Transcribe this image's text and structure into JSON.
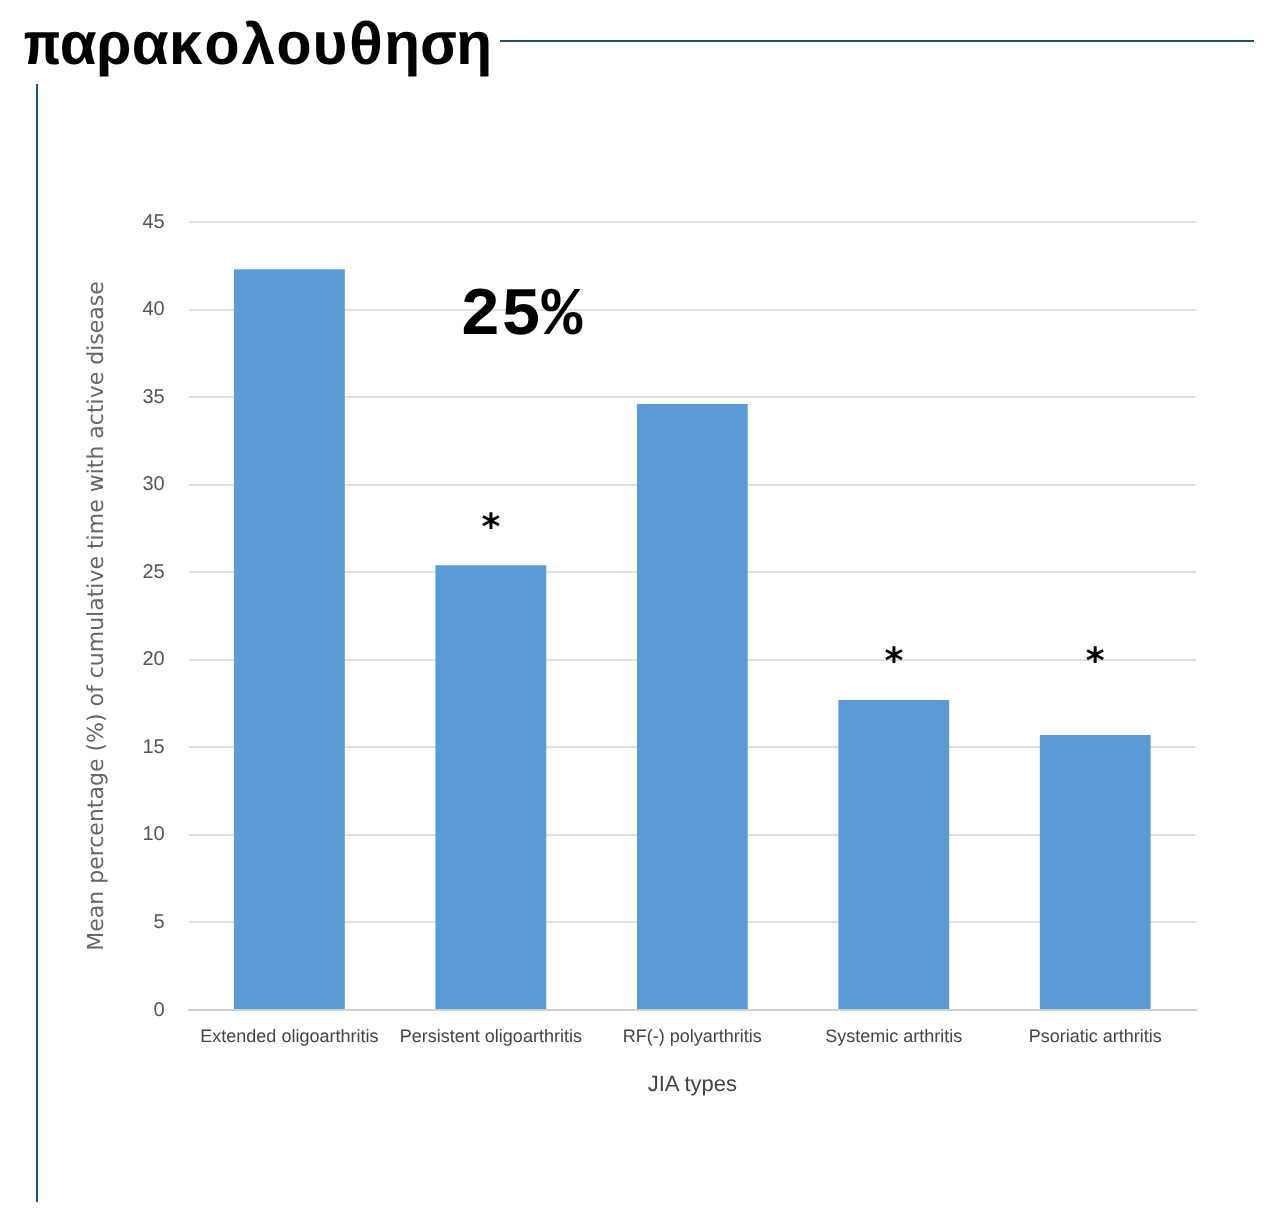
{
  "chart_data": {
    "type": "bar",
    "title": "παρακολουθηση",
    "xlabel": "JIA types",
    "ylabel": "Mean percentage (%) of cumulative time with active disease",
    "categories": [
      "Extended oligoarthritis",
      "Persistent oligoarthritis",
      "RF(-) polyarthritis",
      "Systemic arthritis",
      "Psoriatic arthritis"
    ],
    "values": [
      42.3,
      25.4,
      34.6,
      17.7,
      15.7
    ],
    "color": "#5b9bd5",
    "ylim": [
      0,
      45
    ],
    "yticks": [
      0,
      5,
      10,
      15,
      20,
      25,
      30,
      35,
      40,
      45
    ],
    "grid": "y",
    "legend": false,
    "annotations": [
      "25%",
      "*",
      "*",
      "*"
    ]
  }
}
